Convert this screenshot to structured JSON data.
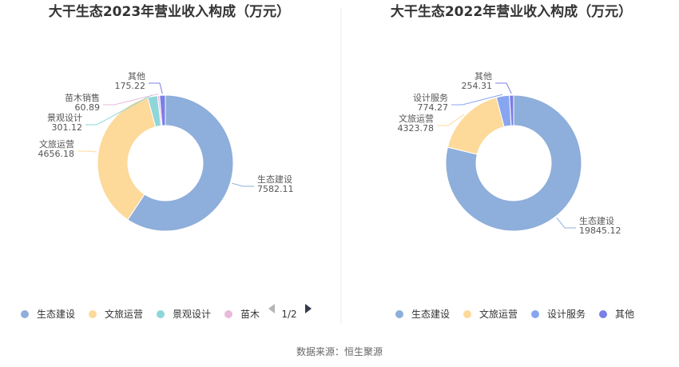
{
  "source_label": "数据来源：恒生聚源",
  "chart_data": [
    {
      "type": "pie",
      "title": "大干生态2023年营业收入构成（万元）",
      "slices": [
        {
          "name": "生态建设",
          "value": 7582.11,
          "label": "7582.11",
          "color": "#8eaedb"
        },
        {
          "name": "文旅运营",
          "value": 4656.18,
          "label": "4656.18",
          "color": "#fdd99a"
        },
        {
          "name": "景观设计",
          "value": 301.12,
          "label": "301.12",
          "color": "#8ed6d9"
        },
        {
          "name": "苗木销售",
          "value": 60.89,
          "label": "60.89",
          "color": "#e8b9da"
        },
        {
          "name": "其他",
          "value": 175.22,
          "label": "175.22",
          "color": "#7b7fe6"
        }
      ],
      "legend": {
        "placement": "bottom",
        "items": [
          "生态建设",
          "文旅运营",
          "景观设计",
          "苗木"
        ],
        "pager": "1/2"
      }
    },
    {
      "type": "pie",
      "title": "大干生态2022年营业收入构成（万元）",
      "slices": [
        {
          "name": "生态建设",
          "value": 19845.12,
          "label": "19845.12",
          "color": "#8eaedb"
        },
        {
          "name": "文旅运营",
          "value": 4323.78,
          "label": "4323.78",
          "color": "#fdd99a"
        },
        {
          "name": "设计服务",
          "value": 774.27,
          "label": "774.27",
          "color": "#88a5f0"
        },
        {
          "name": "其他",
          "value": 254.31,
          "label": "254.31",
          "color": "#7b7fe6"
        }
      ],
      "legend": {
        "placement": "bottom",
        "items": [
          "生态建设",
          "文旅运营",
          "设计服务",
          "其他"
        ]
      }
    }
  ]
}
